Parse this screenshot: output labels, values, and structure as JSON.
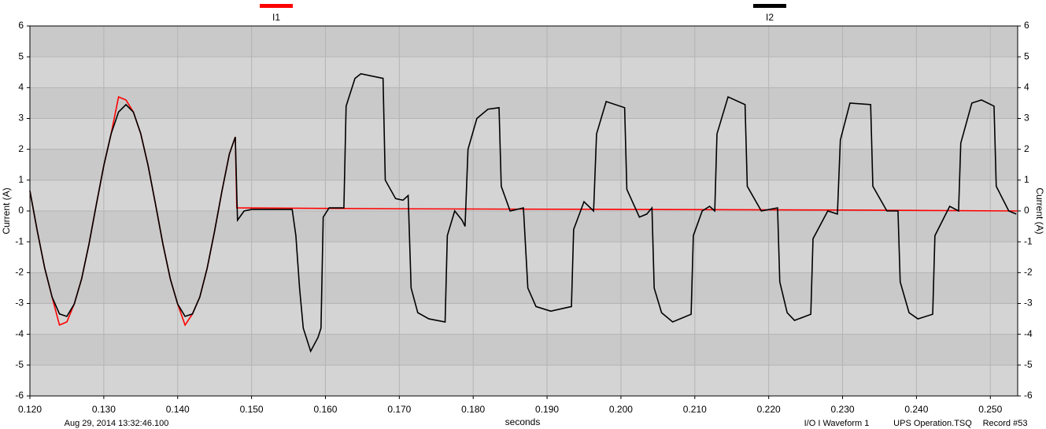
{
  "chart_data": {
    "type": "line",
    "xlabel": "seconds",
    "ylabel": "Current (A)",
    "xlim": [
      0.12,
      0.2537
    ],
    "ylim": [
      -6,
      6
    ],
    "xticks": [
      {
        "value": 0.12,
        "label": "0.120"
      },
      {
        "value": 0.13,
        "label": "0.130"
      },
      {
        "value": 0.14,
        "label": "0.140"
      },
      {
        "value": 0.15,
        "label": "0.150"
      },
      {
        "value": 0.16,
        "label": "0.160"
      },
      {
        "value": 0.17,
        "label": "0.170"
      },
      {
        "value": 0.18,
        "label": "0.180"
      },
      {
        "value": 0.19,
        "label": "0.190"
      },
      {
        "value": 0.2,
        "label": "0.200"
      },
      {
        "value": 0.21,
        "label": "0.210"
      },
      {
        "value": 0.22,
        "label": "0.220"
      },
      {
        "value": 0.23,
        "label": "0.230"
      },
      {
        "value": 0.24,
        "label": "0.240"
      },
      {
        "value": 0.25,
        "label": "0.250"
      }
    ],
    "yticks": [
      6,
      5,
      4,
      3,
      2,
      1,
      0,
      -1,
      -2,
      -3,
      -4,
      -5,
      -6
    ],
    "grid": true,
    "annotations": [
      "Aug 29, 2014 13:32:46.100",
      "I/O I Waveform 1",
      "UPS Operation.TSQ",
      "Record #53"
    ],
    "series": [
      {
        "name": "I1",
        "color": "#ff0000",
        "x": [
          0.12,
          0.121,
          0.122,
          0.123,
          0.124,
          0.125,
          0.126,
          0.127,
          0.128,
          0.129,
          0.13,
          0.131,
          0.132,
          0.133,
          0.134,
          0.135,
          0.136,
          0.137,
          0.138,
          0.139,
          0.14,
          0.141,
          0.142,
          0.143,
          0.144,
          0.145,
          0.146,
          0.147,
          0.1478,
          0.148,
          0.17,
          0.2,
          0.23,
          0.2537
        ],
        "values": [
          0.65,
          -0.65,
          -1.85,
          -2.79,
          -3.7,
          -3.6,
          -3.02,
          -2.2,
          -1.07,
          0.22,
          1.47,
          2.51,
          3.7,
          3.6,
          3.21,
          2.51,
          1.47,
          0.22,
          -1.07,
          -2.2,
          -3.02,
          -3.7,
          -3.34,
          -2.79,
          -1.85,
          -0.65,
          0.65,
          1.85,
          2.4,
          0.1,
          0.07,
          0.05,
          0.03,
          0.0
        ]
      },
      {
        "name": "I2",
        "color": "#000000",
        "x": [
          0.12,
          0.121,
          0.122,
          0.123,
          0.124,
          0.125,
          0.126,
          0.127,
          0.128,
          0.129,
          0.13,
          0.131,
          0.132,
          0.133,
          0.134,
          0.135,
          0.136,
          0.137,
          0.138,
          0.139,
          0.14,
          0.141,
          0.142,
          0.143,
          0.144,
          0.145,
          0.146,
          0.147,
          0.1478,
          0.1481,
          0.149,
          0.15,
          0.1555,
          0.156,
          0.1565,
          0.157,
          0.158,
          0.159,
          0.1594,
          0.1597,
          0.1605,
          0.1625,
          0.1628,
          0.164,
          0.1648,
          0.1678,
          0.1681,
          0.1695,
          0.1705,
          0.1712,
          0.1716,
          0.1725,
          0.174,
          0.1762,
          0.1765,
          0.1775,
          0.1785,
          0.1789,
          0.1793,
          0.1805,
          0.182,
          0.1835,
          0.1838,
          0.185,
          0.1868,
          0.1874,
          0.1885,
          0.1905,
          0.1933,
          0.1936,
          0.195,
          0.1963,
          0.1967,
          0.198,
          0.2005,
          0.2008,
          0.2025,
          0.2035,
          0.2042,
          0.2045,
          0.2055,
          0.207,
          0.2095,
          0.2098,
          0.211,
          0.212,
          0.2127,
          0.213,
          0.2145,
          0.2168,
          0.2171,
          0.219,
          0.2212,
          0.2215,
          0.2225,
          0.2235,
          0.2257,
          0.226,
          0.228,
          0.2293,
          0.2297,
          0.231,
          0.2338,
          0.2341,
          0.236,
          0.2375,
          0.2378,
          0.239,
          0.2402,
          0.2422,
          0.2425,
          0.2445,
          0.2457,
          0.246,
          0.2475,
          0.2488,
          0.2505,
          0.2508,
          0.2525,
          0.2535
        ],
        "values": [
          0.65,
          -0.65,
          -1.85,
          -2.79,
          -3.34,
          -3.42,
          -3.02,
          -2.2,
          -1.07,
          0.22,
          1.47,
          2.51,
          3.21,
          3.45,
          3.21,
          2.51,
          1.47,
          0.22,
          -1.07,
          -2.2,
          -3.02,
          -3.42,
          -3.34,
          -2.79,
          -1.85,
          -0.65,
          0.65,
          1.85,
          2.4,
          -0.3,
          0.0,
          0.05,
          0.05,
          -0.8,
          -2.5,
          -3.8,
          -4.55,
          -4.1,
          -3.8,
          -0.2,
          0.1,
          0.1,
          3.4,
          4.3,
          4.45,
          4.3,
          1.0,
          0.4,
          0.35,
          0.5,
          -2.5,
          -3.3,
          -3.5,
          -3.6,
          -0.8,
          0.0,
          -0.3,
          -0.5,
          2.0,
          3.0,
          3.3,
          3.35,
          0.8,
          0.0,
          0.1,
          -2.5,
          -3.1,
          -3.25,
          -3.1,
          -0.6,
          0.3,
          0.0,
          2.5,
          3.55,
          3.35,
          0.7,
          -0.2,
          -0.1,
          0.1,
          -2.5,
          -3.3,
          -3.6,
          -3.35,
          -0.8,
          0.0,
          0.15,
          0.0,
          2.5,
          3.7,
          3.45,
          0.8,
          0.0,
          0.1,
          -2.3,
          -3.3,
          -3.55,
          -3.35,
          -0.9,
          0.0,
          -0.1,
          2.3,
          3.5,
          3.45,
          0.8,
          0.0,
          0.0,
          -2.3,
          -3.3,
          -3.5,
          -3.35,
          -0.8,
          0.15,
          0.0,
          2.2,
          3.5,
          3.6,
          3.4,
          0.8,
          0.0,
          -0.1
        ]
      }
    ]
  }
}
